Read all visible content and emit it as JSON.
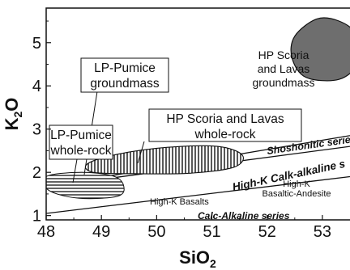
{
  "chart_data": {
    "type": "scatter",
    "xlabel": "SiO2",
    "xlabel_main": "SiO",
    "xlabel_sub": "2",
    "ylabel": "K2O",
    "ylabel_main": "K",
    "ylabel_sub": "2",
    "ylabel_tail": "O",
    "xlim": [
      48,
      53.5
    ],
    "ylim": [
      0.9,
      5.8
    ],
    "xticks": [
      48,
      49,
      50,
      51,
      52,
      53
    ],
    "yticks": [
      1,
      2,
      3,
      4,
      5
    ],
    "grid": false,
    "boundary_lines": [
      {
        "label": "Shoshonitic series",
        "points": [
          [
            48,
            1.67
          ],
          [
            53.5,
            2.85
          ]
        ]
      },
      {
        "label": "High-K Calk-alkaline s",
        "points": [
          [
            48,
            1.67
          ],
          [
            53.5,
            2.6
          ]
        ]
      },
      {
        "label": "Calc-Alkaline series",
        "points": [
          [
            48,
            1.05
          ],
          [
            53.5,
            1.9
          ]
        ]
      }
    ],
    "fields": [
      {
        "name": "HP Scoria and Lavas groundmass",
        "color": "#6e6e6e",
        "outline": [
          [
            52.5,
            5.15
          ],
          [
            52.9,
            5.55
          ],
          [
            53.3,
            5.5
          ],
          [
            53.6,
            5.2
          ],
          [
            53.65,
            4.55
          ],
          [
            53.3,
            4.15
          ],
          [
            52.7,
            4.2
          ],
          [
            52.45,
            4.65
          ]
        ]
      },
      {
        "name": "HP Scoria and Lavas whole-rock",
        "color": "#8c8c8c",
        "outline": [
          [
            48.75,
            2.2
          ],
          [
            49.3,
            2.42
          ],
          [
            50.2,
            2.58
          ],
          [
            51.1,
            2.6
          ],
          [
            51.55,
            2.4
          ],
          [
            51.4,
            2.12
          ],
          [
            50.6,
            1.98
          ],
          [
            49.6,
            1.97
          ],
          [
            48.85,
            2.0
          ]
        ]
      },
      {
        "name": "LP-Pumice groundmass",
        "color": "#bdbdbd",
        "outline": [
          [
            48.85,
            2.25
          ],
          [
            49.5,
            2.38
          ],
          [
            50.4,
            2.5
          ],
          [
            51.05,
            2.47
          ],
          [
            51.45,
            2.32
          ],
          [
            51.1,
            2.08
          ],
          [
            50.1,
            1.98
          ],
          [
            49.1,
            1.98
          ],
          [
            48.85,
            2.1
          ]
        ]
      },
      {
        "name": "LP-Pumice whole-rock",
        "color": "#ffffff",
        "outline": [
          [
            48.0,
            1.9
          ],
          [
            48.6,
            2.0
          ],
          [
            49.2,
            1.92
          ],
          [
            49.4,
            1.7
          ],
          [
            49.3,
            1.45
          ],
          [
            48.6,
            1.4
          ],
          [
            48.05,
            1.58
          ]
        ]
      }
    ],
    "annotations": [
      {
        "id": "hp_gm",
        "lines": [
          "HP Scoria",
          "and Lavas",
          "groundmass"
        ]
      },
      {
        "id": "lp_gm",
        "lines": [
          "LP-Pumice",
          "groundmass"
        ]
      },
      {
        "id": "hp_wr",
        "lines": [
          "HP Scoria and Lavas",
          "whole-rock"
        ]
      },
      {
        "id": "lp_wr",
        "lines": [
          "LP-Pumice",
          "whole-rock"
        ]
      },
      {
        "id": "shosh",
        "lines": [
          "Shoshonitic series"
        ]
      },
      {
        "id": "hk_calk",
        "lines": [
          "High-K Calk-alkaline s"
        ]
      },
      {
        "id": "hk_bas",
        "lines": [
          "High-K Basalts"
        ]
      },
      {
        "id": "hk_ba",
        "lines": [
          "High-K",
          "Basaltic-Andesite"
        ]
      },
      {
        "id": "calc",
        "lines": [
          "Calc-Alkaline series"
        ]
      }
    ]
  }
}
